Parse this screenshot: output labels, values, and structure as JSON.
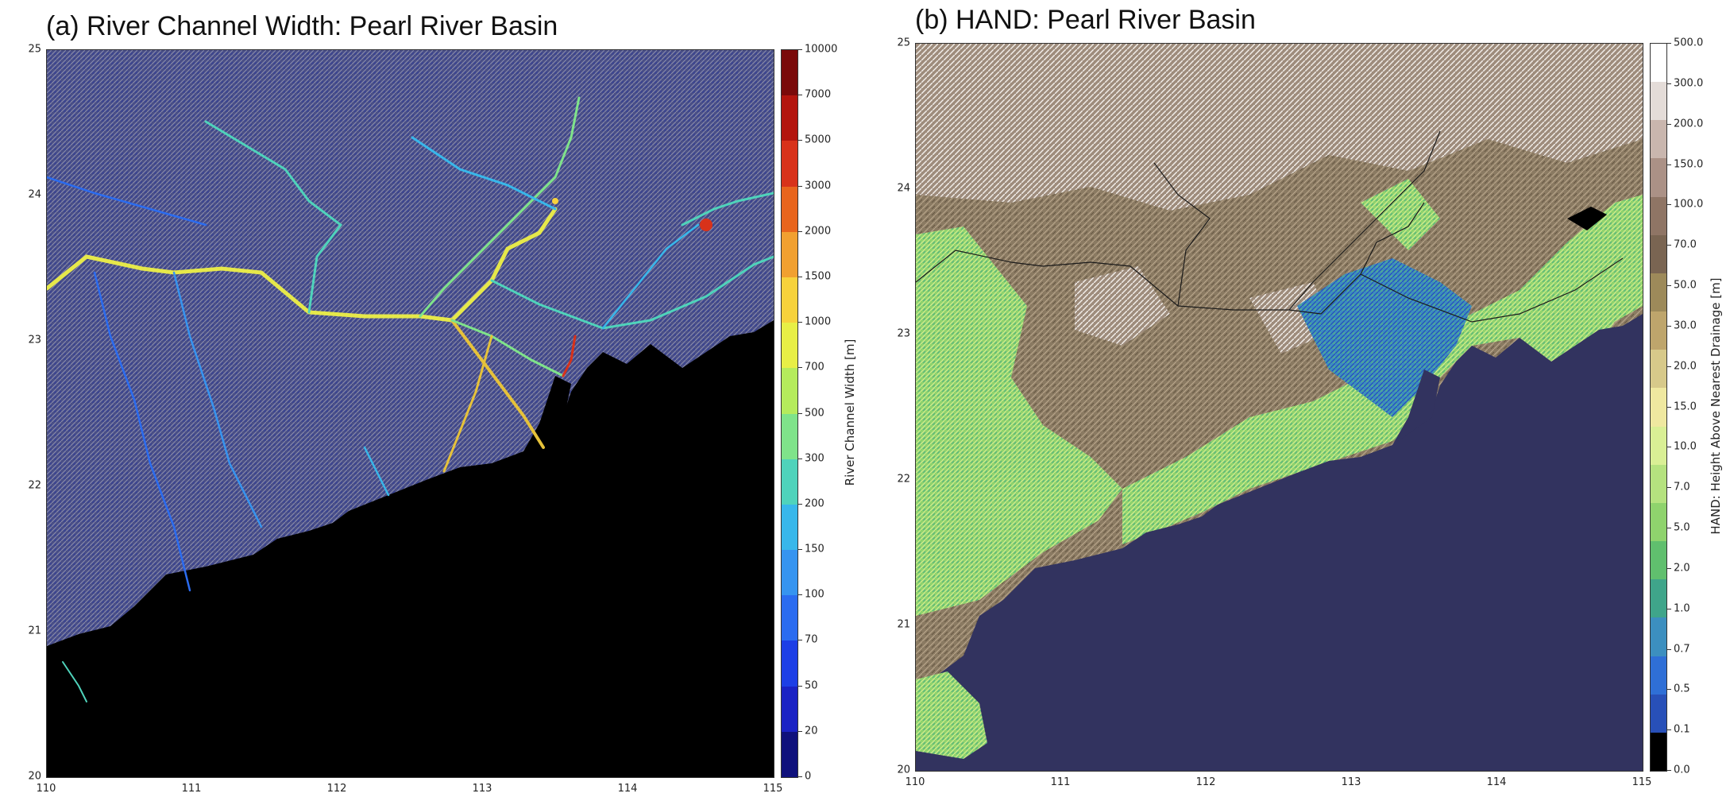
{
  "panel_a": {
    "title": "(a) River Channel Width: Pearl River Basin",
    "colorbar_label": "River Channel Width [m]",
    "colorbar_ticks": [
      "10000",
      "7000",
      "5000",
      "3000",
      "2000",
      "1500",
      "1000",
      "700",
      "500",
      "300",
      "200",
      "150",
      "100",
      "70",
      "50",
      "20",
      "0"
    ],
    "colorbar_colors": [
      "#7a0a0a",
      "#b3150e",
      "#d8321a",
      "#e8651d",
      "#f1a030",
      "#f7d23c",
      "#e8ef46",
      "#b5eb5c",
      "#7fe38a",
      "#4fd3bb",
      "#38b7ea",
      "#3694f0",
      "#2b6cf0",
      "#1d3fe6",
      "#1a22c4",
      "#0f117c"
    ],
    "water_color": "#000000",
    "land_color": "#4a4f86"
  },
  "panel_b": {
    "title": "(b) HAND: Pearl River Basin",
    "colorbar_label": "HAND: Height Above Nearest Drainage [m]",
    "colorbar_ticks": [
      "500.0",
      "300.0",
      "200.0",
      "150.0",
      "100.0",
      "70.0",
      "50.0",
      "30.0",
      "20.0",
      "15.0",
      "10.0",
      "7.0",
      "5.0",
      "2.0",
      "1.0",
      "0.7",
      "0.5",
      "0.1",
      "0.0"
    ],
    "colorbar_colors": [
      "#ffffff",
      "#e4dcd8",
      "#c9b6ae",
      "#ab9186",
      "#8f7565",
      "#7a6552",
      "#9d8a5a",
      "#bea56c",
      "#d7c98a",
      "#efe8a0",
      "#d9ef95",
      "#b5e27f",
      "#8fd36d",
      "#60bf6e",
      "#3fa58a",
      "#3c8fbf",
      "#2f6fd6",
      "#2850b8",
      "#000000"
    ],
    "water_color": "#32335f",
    "land_color": "#8a7a62"
  },
  "axes": {
    "x_ticks": [
      "110",
      "111",
      "112",
      "113",
      "114",
      "115"
    ],
    "y_ticks": [
      "25",
      "24",
      "23",
      "22",
      "21",
      "20"
    ]
  },
  "chart_data": [
    {
      "type": "heatmap",
      "title": "(a) River Channel Width: Pearl River Basin",
      "variable": "River Channel Width [m]",
      "x": [
        "110",
        "111",
        "112",
        "113",
        "114",
        "115"
      ],
      "y": [
        "20",
        "21",
        "22",
        "23",
        "24",
        "25"
      ],
      "xlim": [
        110,
        115
      ],
      "ylim": [
        20,
        25
      ],
      "colorbar_levels": [
        0,
        20,
        50,
        70,
        100,
        150,
        200,
        300,
        500,
        700,
        1000,
        1500,
        2000,
        3000,
        5000,
        7000,
        10000
      ]
    },
    {
      "type": "heatmap",
      "title": "(b) HAND: Pearl River Basin",
      "variable": "HAND: Height Above Nearest Drainage [m]",
      "x": [
        "110",
        "111",
        "112",
        "113",
        "114",
        "115"
      ],
      "y": [
        "20",
        "21",
        "22",
        "23",
        "24",
        "25"
      ],
      "xlim": [
        110,
        115
      ],
      "ylim": [
        20,
        25
      ],
      "colorbar_levels": [
        0.0,
        0.1,
        0.5,
        0.7,
        1.0,
        2.0,
        5.0,
        7.0,
        10.0,
        15.0,
        20.0,
        30.0,
        50.0,
        70.0,
        100.0,
        150.0,
        200.0,
        300.0,
        500.0
      ]
    }
  ]
}
